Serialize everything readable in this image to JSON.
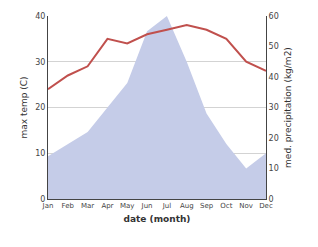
{
  "chart_data": {
    "type": "line",
    "categories": [
      "Jan",
      "Feb",
      "Mar",
      "Apr",
      "May",
      "Jun",
      "Jul",
      "Aug",
      "Sep",
      "Oct",
      "Nov",
      "Dec"
    ],
    "xlabel": "date (month)",
    "ylabel": "max temp (C)",
    "y2label": "med. precipitation (kg/m2)",
    "series": [
      {
        "type": "area",
        "axis": "y2",
        "color": "#c5cce8",
        "values": [
          14,
          18,
          22,
          30,
          38,
          55,
          60,
          45,
          28,
          18,
          10,
          15
        ]
      },
      {
        "type": "line",
        "color": "#c0504d",
        "values": [
          24,
          27,
          29,
          35,
          34,
          36,
          37,
          38,
          37,
          35,
          30,
          28
        ]
      }
    ],
    "ylim": [
      0,
      40
    ],
    "yticks": [
      0,
      10,
      20,
      30,
      40
    ],
    "y2lim": [
      0,
      60
    ],
    "y2ticks": [
      0,
      10,
      20,
      30,
      40,
      50,
      60
    ],
    "grid": true
  }
}
